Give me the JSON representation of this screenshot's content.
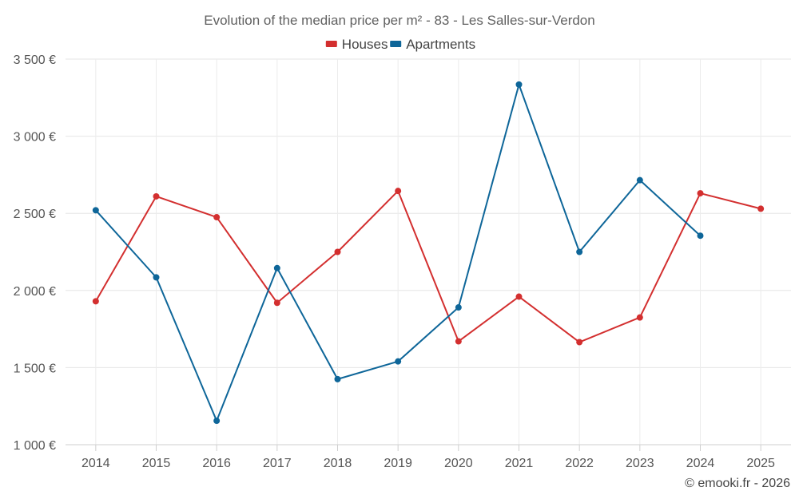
{
  "chart_data": {
    "type": "line",
    "title": "Evolution of the median price per m² - 83 - Les Salles-sur-Verdon",
    "categories": [
      "2014",
      "2015",
      "2016",
      "2017",
      "2018",
      "2019",
      "2020",
      "2021",
      "2022",
      "2023",
      "2024",
      "2025"
    ],
    "series": [
      {
        "name": "Houses",
        "color": "#d32f2f",
        "values": [
          1930,
          2610,
          2475,
          1920,
          2250,
          2645,
          1670,
          1960,
          1665,
          1825,
          2630,
          2530
        ]
      },
      {
        "name": "Apartments",
        "color": "#0e6699",
        "values": [
          2520,
          2085,
          1155,
          2145,
          1425,
          1540,
          1890,
          3335,
          2250,
          2715,
          2355,
          null
        ]
      }
    ],
    "yticks": [
      1000,
      1500,
      2000,
      2500,
      3000,
      3500
    ],
    "ytick_labels": [
      "1 000 €",
      "1 500 €",
      "2 000 €",
      "2 500 €",
      "3 000 €",
      "3 500 €"
    ],
    "ylim": [
      1000,
      3500
    ],
    "legend_position": "top-center",
    "grid": true,
    "xlabel": "",
    "ylabel": ""
  },
  "footer": {
    "credit": "© emooki.fr - 2026"
  }
}
